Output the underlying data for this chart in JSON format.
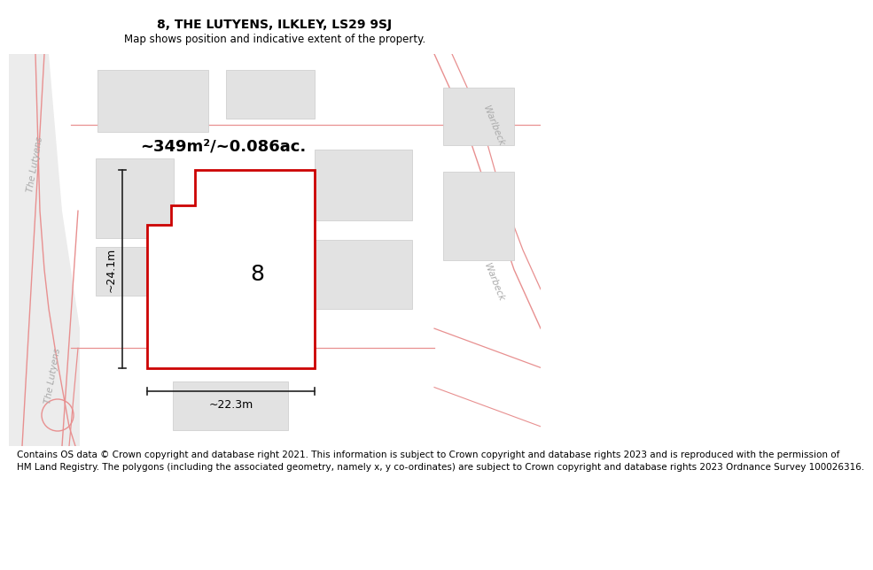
{
  "title": "8, THE LUTYENS, ILKLEY, LS29 9SJ",
  "subtitle": "Map shows position and indicative extent of the property.",
  "footer_line1": "Contains OS data © Crown copyright and database right 2021. This information is subject to Crown copyright and database rights 2023 and is reproduced with the permission of",
  "footer_line2": "HM Land Registry. The polygons (including the associated geometry, namely x, y co-ordinates) are subject to Crown copyright and database rights 2023 Ordnance Survey 100026316.",
  "area_text": "~349m²/~0.086ac.",
  "width_text": "~22.3m",
  "height_text": "~24.1m",
  "plot_number": "8",
  "map_bg": "#f0f0f0",
  "block_color": "#e2e2e2",
  "block_edge": "#d0d0d0",
  "pink": "#e89090",
  "red_line": "#cc0000",
  "dim_color": "#222222",
  "road_text_color": "#aaaaaa",
  "title_fontsize": 10,
  "subtitle_fontsize": 8.5,
  "footer_fontsize": 7.5,
  "area_fontsize": 13,
  "dim_fontsize": 9,
  "plot_label_fontsize": 18,
  "road_fontsize": 7.5
}
